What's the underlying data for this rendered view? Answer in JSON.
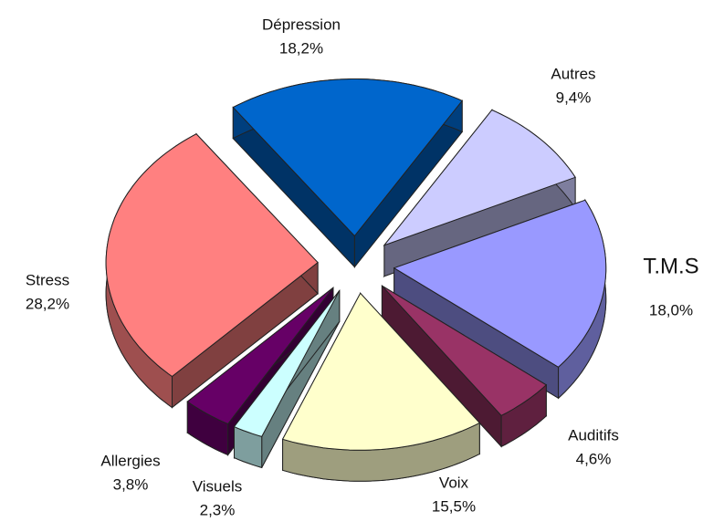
{
  "chart_data": {
    "type": "pie",
    "categories": [
      "Dépression",
      "Autres",
      "T.M.S",
      "Auditifs",
      "Voix",
      "Visuels",
      "Allergies",
      "Stress"
    ],
    "values": [
      18.2,
      9.4,
      18.0,
      4.6,
      15.5,
      2.3,
      3.8,
      28.2
    ],
    "value_labels": [
      "18,2%",
      "9,4%",
      "18,0%",
      "4,6%",
      "15,5%",
      "2,3%",
      "3,8%",
      "28,2%"
    ],
    "colors": [
      "#0066cc",
      "#ccccff",
      "#9999ff",
      "#993366",
      "#ffffcc",
      "#ccffff",
      "#660066",
      "#ff8080"
    ]
  }
}
